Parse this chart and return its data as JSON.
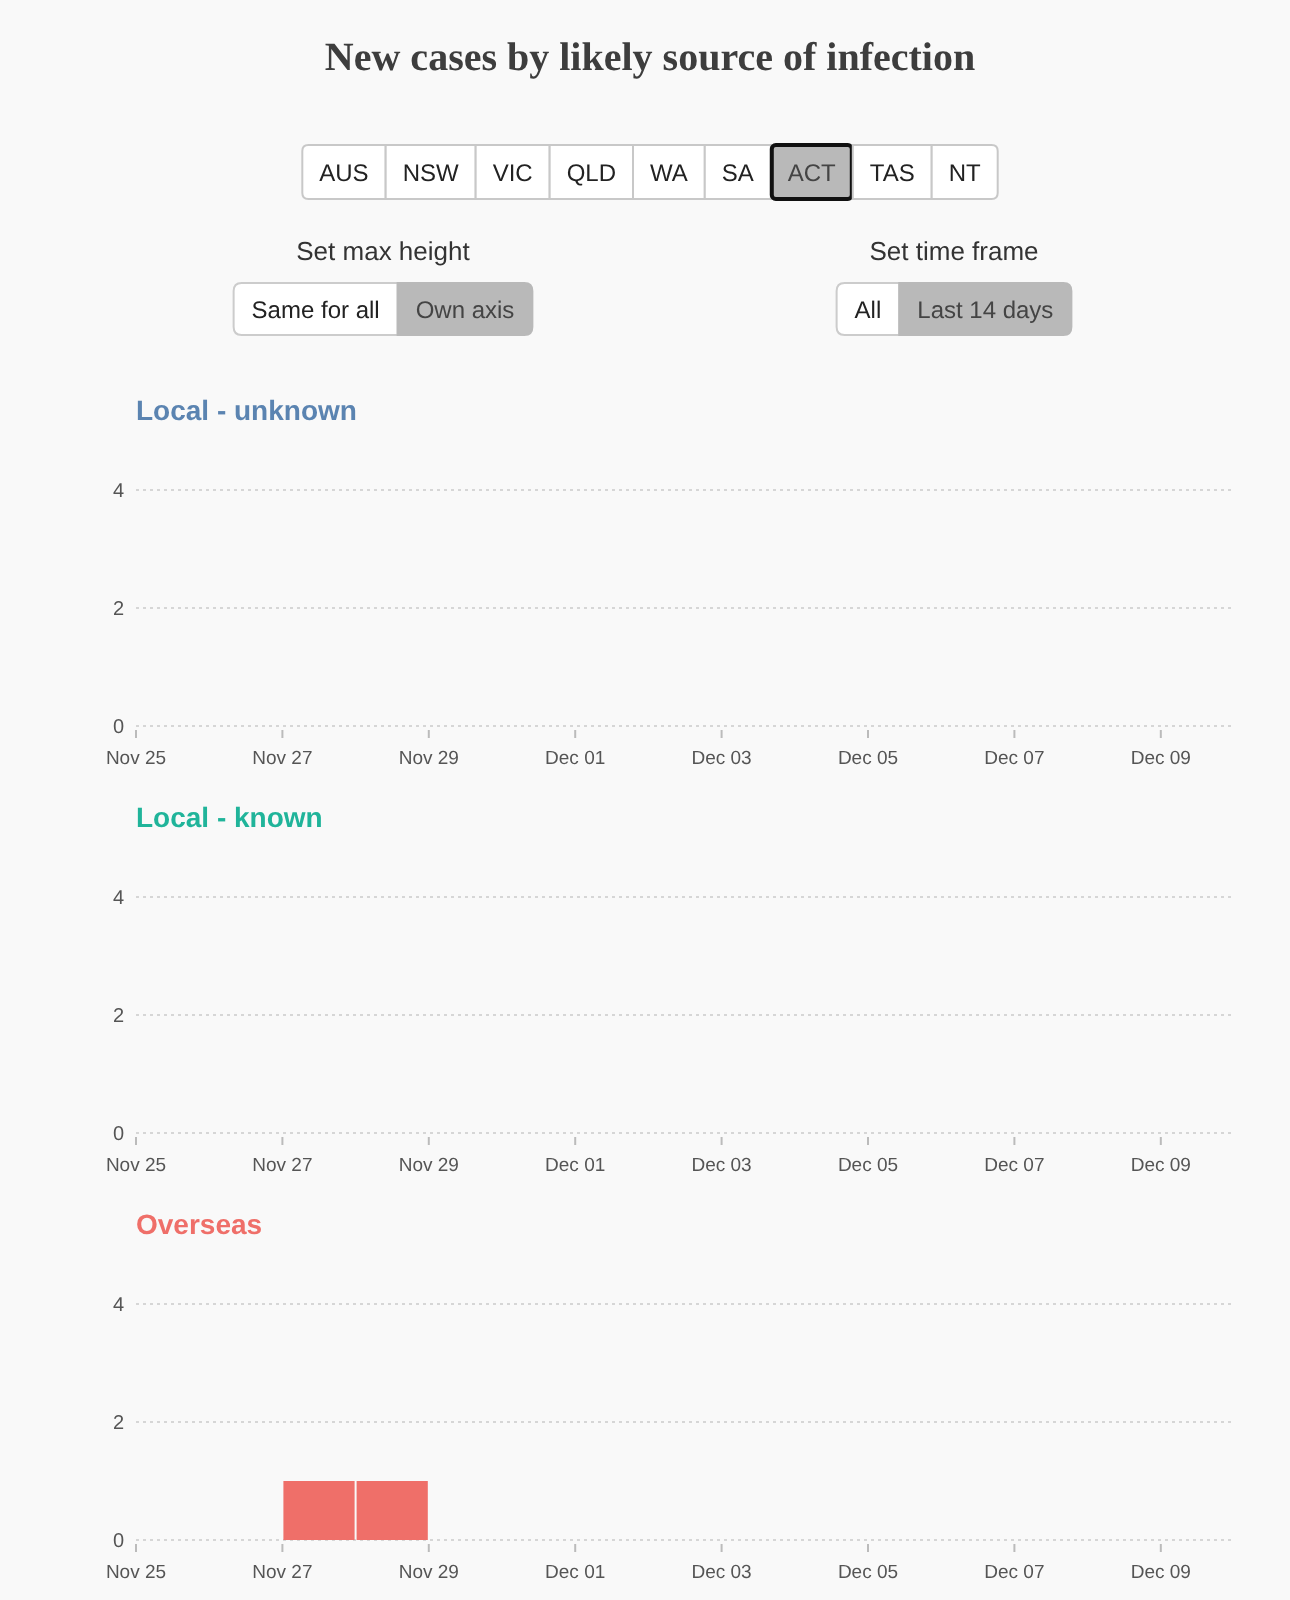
{
  "chart_data": [
    {
      "type": "other",
      "title": "New cases by likely source of infection",
      "annotations": [
        "AUS",
        "NSW",
        "VIC",
        "QLD",
        "WA",
        "SA",
        "ACT",
        "TAS",
        "NT",
        "Set max height",
        "Same for all",
        "Own axis",
        "Set time frame",
        "All",
        "Last 14 days"
      ]
    },
    {
      "type": "histogram",
      "title": "Local - unknown",
      "color": "#5b84b1",
      "xlim": [
        "--11-25",
        "--12-10"
      ],
      "xticks": [
        {
          "value": "--11-25",
          "label": "Nov 25"
        },
        {
          "value": "--11-27",
          "label": "Nov 27"
        },
        {
          "value": "--11-29",
          "label": "Nov 29"
        },
        {
          "value": "--12-01",
          "label": "Dec 01"
        },
        {
          "value": "--12-03",
          "label": "Dec 03"
        },
        {
          "value": "--12-05",
          "label": "Dec 05"
        },
        {
          "value": "--12-07",
          "label": "Dec 07"
        },
        {
          "value": "--12-09",
          "label": "Dec 09"
        }
      ],
      "ylim": [
        0,
        4
      ],
      "yticks": [
        0,
        2,
        4
      ],
      "grid": "y"
    },
    {
      "type": "histogram",
      "title": "Local - known",
      "color": "#20b49a",
      "xlim": [
        "--11-25",
        "--12-10"
      ],
      "xticks": [
        {
          "value": "--11-25",
          "label": "Nov 25"
        },
        {
          "value": "--11-27",
          "label": "Nov 27"
        },
        {
          "value": "--11-29",
          "label": "Nov 29"
        },
        {
          "value": "--12-01",
          "label": "Dec 01"
        },
        {
          "value": "--12-03",
          "label": "Dec 03"
        },
        {
          "value": "--12-05",
          "label": "Dec 05"
        },
        {
          "value": "--12-07",
          "label": "Dec 07"
        },
        {
          "value": "--12-09",
          "label": "Dec 09"
        }
      ],
      "ylim": [
        0,
        4
      ],
      "yticks": [
        0,
        2,
        4
      ],
      "grid": "y"
    },
    {
      "type": "histogram",
      "title": "Overseas",
      "color": "#ef6f69",
      "bins": [
        "--11-27",
        "--11-28",
        "--11-29"
      ],
      "values": [
        1,
        1
      ],
      "xlim": [
        "--11-25",
        "--12-10"
      ],
      "xticks": [
        {
          "value": "--11-25",
          "label": "Nov 25"
        },
        {
          "value": "--11-27",
          "label": "Nov 27"
        },
        {
          "value": "--11-29",
          "label": "Nov 29"
        },
        {
          "value": "--12-01",
          "label": "Dec 01"
        },
        {
          "value": "--12-03",
          "label": "Dec 03"
        },
        {
          "value": "--12-05",
          "label": "Dec 05"
        },
        {
          "value": "--12-07",
          "label": "Dec 07"
        },
        {
          "value": "--12-09",
          "label": "Dec 09"
        }
      ],
      "ylim": [
        0,
        4
      ],
      "yticks": [
        0,
        2,
        4
      ],
      "grid": "y"
    }
  ]
}
